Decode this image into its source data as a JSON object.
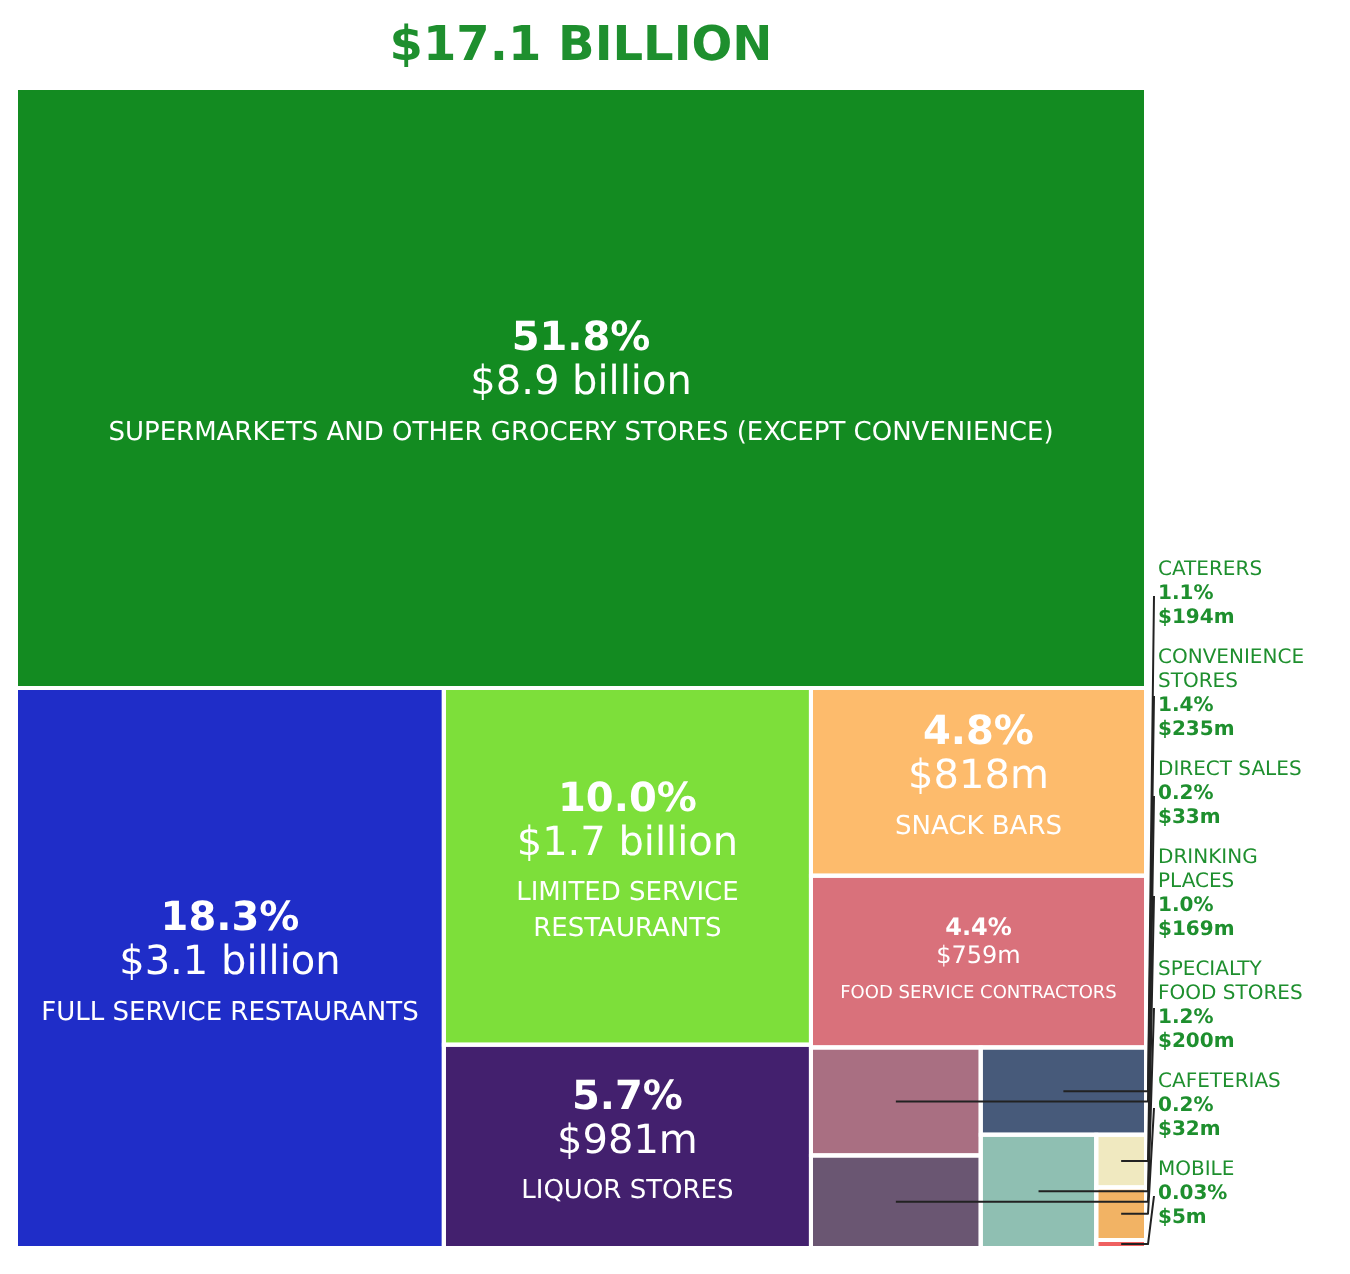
{
  "chart_data": {
    "type": "other",
    "title": "$17.1 BILLION",
    "categories": [
      "SUPERMARKETS AND OTHER GROCERY STORES (EXCEPT CONVENIENCE)",
      "FULL SERVICE RESTAURANTS",
      "LIMITED SERVICE RESTAURANTS",
      "LIQUOR STORES",
      "SNACK BARS",
      "FOOD SERVICE CONTRACTORS",
      "CONVENIENCE STORES",
      "SPECIALTY FOOD STORES",
      "CATERERS",
      "DRINKING PLACES",
      "DIRECT SALES",
      "CAFETERIAS",
      "MOBILE"
    ],
    "values": [
      51.8,
      18.3,
      10.0,
      5.7,
      4.8,
      4.4,
      1.4,
      1.2,
      1.1,
      1.0,
      0.2,
      0.2,
      0.03
    ],
    "value_labels": [
      "51.8%\n$8.9 billion",
      "18.3%\n$3.1 billion",
      "10.0%\n$1.7 billion",
      "5.7%\n$981m",
      "4.8%\n$818m",
      "4.4%\n$759m",
      "1.4%\n$235m",
      "1.2%\n$200m",
      "1.1%\n$194m",
      "1.0%\n$169m",
      "0.2%\n$33m",
      "0.2%\n$32m",
      "0.03%\n$5m"
    ],
    "colors": [
      "#138b21",
      "#1f2dc8",
      "#7ddf3a",
      "#43206e",
      "#fdbb6c",
      "#d9717b",
      "#a96f82",
      "#6a5672",
      "#475a7a",
      "#8fbfb2",
      "#f0e9c0",
      "#f2b364",
      "#ef6060"
    ]
  }
}
